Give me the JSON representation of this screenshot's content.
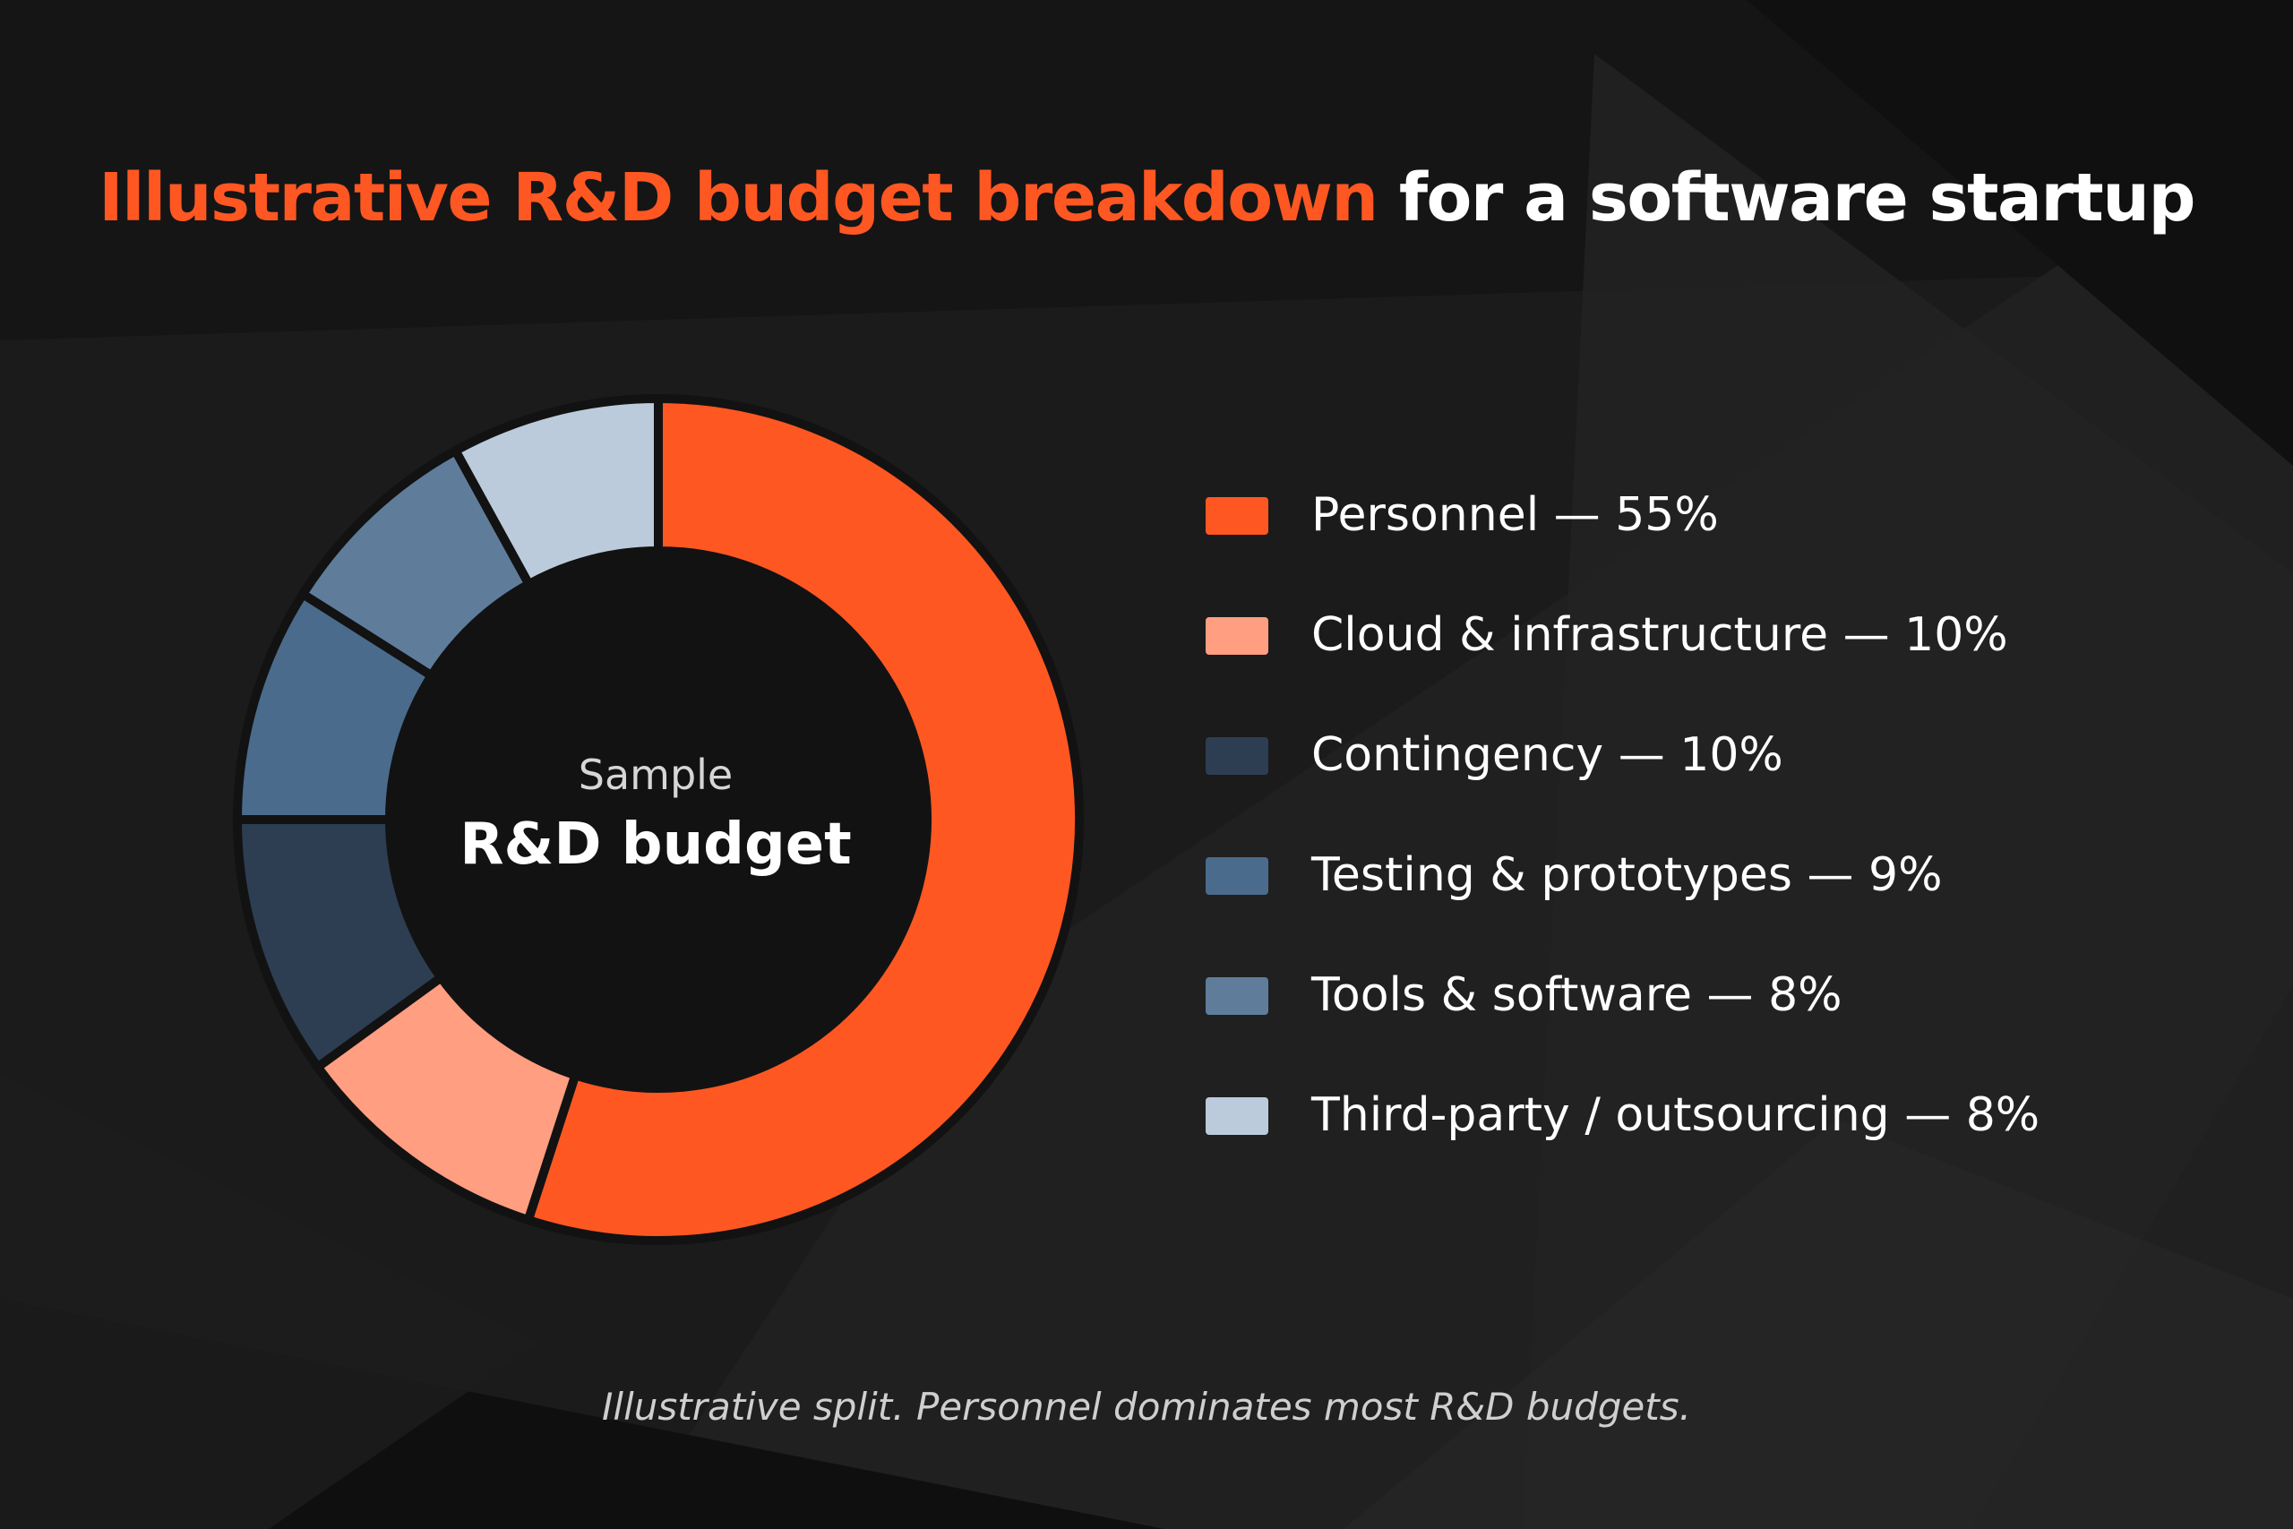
{
  "title": {
    "accent": "Illustrative R&D budget breakdown",
    "rest": "for a software startup"
  },
  "center": {
    "subtitle": "Sample",
    "label": "R&D budget"
  },
  "footnote": "Illustrative split. Personnel dominates most R&D budgets.",
  "chart_data": {
    "type": "pie",
    "variant": "donut",
    "categories": [
      "Personnel",
      "Cloud & infrastructure",
      "Contingency",
      "Testing & prototypes",
      "Tools & software",
      "Third-party / outsourcing"
    ],
    "values": [
      55,
      10,
      10,
      9,
      8,
      8
    ],
    "unit": "%",
    "colors": [
      "#ff5722",
      "#ff9e80",
      "#2d3e52",
      "#4a6b8c",
      "#5f7d9b",
      "#bccbdb"
    ],
    "legend": [
      {
        "label": "Personnel — 55%",
        "color": "#ff5722"
      },
      {
        "label": "Cloud & infrastructure — 10%",
        "color": "#ff9e80"
      },
      {
        "label": "Contingency — 10%",
        "color": "#2d3e52"
      },
      {
        "label": "Testing & prototypes — 9%",
        "color": "#4a6b8c"
      },
      {
        "label": "Tools & software — 8%",
        "color": "#5f7d9b"
      },
      {
        "label": "Third-party / outsourcing — 8%",
        "color": "#bccbdb"
      }
    ],
    "legend_position": "right"
  },
  "colors": {
    "accent": "#ff5722",
    "background": "#141414"
  }
}
